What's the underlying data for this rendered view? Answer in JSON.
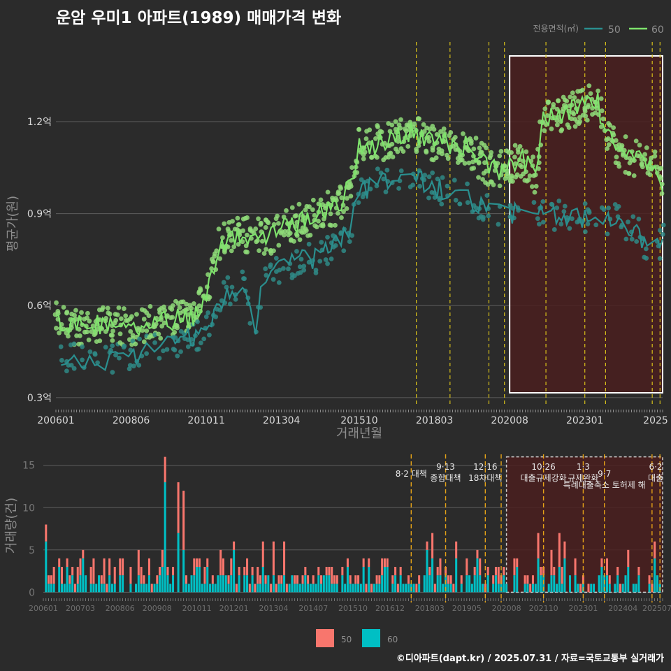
{
  "title": "운암 우미1 아파트(1989) 매매가격 변화",
  "credit": "©디아파트(dapt.kr) / 2025.07.31 / 자료=국토교통부 실거래가",
  "colors": {
    "bg": "#2b2b2b",
    "grid": "#5c5c5c",
    "axis_text": "#d8d8d8",
    "axis_title": "#8e8e8e",
    "s50_line": "#2a8f8f",
    "s60_line": "#7ee36c",
    "s50_point": "#2f8a86",
    "s60_point": "#8fdc79",
    "bar50": "#f8766d",
    "bar60": "#00bfc4",
    "event_line": "#d8c11a",
    "event_line_bottom": "#e6a317",
    "highlight_fill": "#4a1f1f",
    "highlight_border": "#ffffff",
    "event_text": "#e8e8e8"
  },
  "chart_data": [
    {
      "type": "line",
      "name": "price",
      "xlabel": "거래년월",
      "ylabel": "평균가(원)",
      "ylim": [
        0.27,
        1.46
      ],
      "xlim": [
        "2006-01",
        "2025-07"
      ],
      "y_ticks": [
        0.3,
        0.6,
        0.9,
        1.2
      ],
      "y_tick_labels": [
        "0.3억",
        "0.6억",
        "0.9억",
        "1.2억"
      ],
      "x_tick_labels": [
        "200601",
        "200806",
        "201011",
        "201304",
        "201510",
        "201803",
        "202008",
        "202301",
        "2025"
      ],
      "x_tick_dates": [
        "2006-01",
        "2008-06",
        "2010-11",
        "2013-04",
        "2015-10",
        "2018-03",
        "2020-08",
        "2023-01",
        "2025-07"
      ],
      "grid": true,
      "legend": {
        "title": "전용면적(㎡)",
        "position": "top-right",
        "entries": [
          "50",
          "60"
        ]
      },
      "series": [
        {
          "name": "60",
          "anchors": [
            [
              "2006-01",
              0.55
            ],
            [
              "2006-06",
              0.53
            ],
            [
              "2007-06",
              0.54
            ],
            [
              "2008-06",
              0.53
            ],
            [
              "2009-06",
              0.55
            ],
            [
              "2010-06",
              0.56
            ],
            [
              "2010-11",
              0.65
            ],
            [
              "2011-04",
              0.8
            ],
            [
              "2011-10",
              0.83
            ],
            [
              "2012-06",
              0.83
            ],
            [
              "2013-01",
              0.83
            ],
            [
              "2013-06",
              0.86
            ],
            [
              "2014-01",
              0.88
            ],
            [
              "2014-06",
              0.9
            ],
            [
              "2015-01",
              0.92
            ],
            [
              "2015-06",
              0.98
            ],
            [
              "2015-10",
              1.12
            ],
            [
              "2016-06",
              1.13
            ],
            [
              "2017-01",
              1.15
            ],
            [
              "2017-06",
              1.17
            ],
            [
              "2018-03",
              1.13
            ],
            [
              "2018-09",
              1.13
            ],
            [
              "2019-03",
              1.12
            ],
            [
              "2019-09",
              1.07
            ],
            [
              "2020-03",
              1.04
            ],
            [
              "2020-08",
              1.06
            ],
            [
              "2021-01",
              1.08
            ],
            [
              "2021-06",
              1.02
            ],
            [
              "2021-09",
              1.2
            ],
            [
              "2022-03",
              1.22
            ],
            [
              "2022-09",
              1.24
            ],
            [
              "2023-01",
              1.25
            ],
            [
              "2023-06",
              1.27
            ],
            [
              "2023-09",
              1.15
            ],
            [
              "2024-03",
              1.1
            ],
            [
              "2024-09",
              1.08
            ],
            [
              "2025-03",
              1.07
            ],
            [
              "2025-07",
              1.0
            ]
          ]
        },
        {
          "name": "50",
          "anchors": [
            [
              "2006-01",
              0.43
            ],
            [
              "2007-06",
              0.42
            ],
            [
              "2008-06",
              0.44
            ],
            [
              "2009-06",
              0.47
            ],
            [
              "2010-06",
              0.5
            ],
            [
              "2010-11",
              0.52
            ],
            [
              "2011-06",
              0.64
            ],
            [
              "2012-01",
              0.68
            ],
            [
              "2012-06",
              0.5
            ],
            [
              "2012-09",
              0.7
            ],
            [
              "2013-06",
              0.73
            ],
            [
              "2014-01",
              0.76
            ],
            [
              "2014-06",
              0.75
            ],
            [
              "2015-01",
              0.8
            ],
            [
              "2015-06",
              0.83
            ],
            [
              "2015-10",
              0.97
            ],
            [
              "2016-06",
              1.0
            ],
            [
              "2017-01",
              1.02
            ],
            [
              "2017-06",
              1.03
            ],
            [
              "2018-03",
              0.98
            ],
            [
              "2019-01",
              0.97
            ],
            [
              "2019-09",
              0.92
            ],
            [
              "2020-03",
              0.9
            ],
            [
              "2020-08",
              0.9
            ],
            [
              "2021-06",
              0.9
            ],
            [
              "2024-01",
              0.88
            ],
            [
              "2024-09",
              0.85
            ],
            [
              "2025-03",
              0.75
            ],
            [
              "2025-07",
              0.82
            ]
          ]
        }
      ]
    },
    {
      "type": "bar",
      "name": "volume",
      "ylabel": "거래량(건)",
      "ylim": [
        -0.8,
        16.3
      ],
      "y_ticks": [
        0,
        5,
        10,
        15
      ],
      "y_tick_labels": [
        "0",
        "5",
        "10",
        "15"
      ],
      "x_tick_labels": [
        "200601",
        "200703",
        "200806",
        "200908",
        "201011",
        "201201",
        "201304",
        "201407",
        "201510",
        "201612",
        "201803",
        "201905",
        "202008",
        "202110",
        "202301",
        "202404",
        "202507"
      ],
      "x_tick_dates": [
        "2006-01",
        "2007-03",
        "2008-06",
        "2009-08",
        "2010-11",
        "2012-01",
        "2013-04",
        "2014-07",
        "2015-10",
        "2016-12",
        "2018-03",
        "2019-05",
        "2020-08",
        "2021-10",
        "2023-01",
        "2024-04",
        "2025-07"
      ],
      "legend_position": "bottom",
      "series": [
        {
          "name": "50",
          "role": "stacked-top"
        },
        {
          "name": "60",
          "role": "stacked-bottom"
        }
      ],
      "notable_peaks": [
        {
          "month": "2009-11",
          "value": 16
        },
        {
          "month": "2010-04",
          "value": 13
        },
        {
          "month": "2010-06",
          "value": 12
        },
        {
          "month": "2006-02",
          "value": 8
        }
      ]
    }
  ],
  "events": [
    {
      "date": "2017-08",
      "label": "8·2 대책",
      "row": 1
    },
    {
      "date": "2018-09",
      "label": "9·13\n종합대책",
      "row": 0
    },
    {
      "date": "2019-12",
      "label": "12·16\n18차대책",
      "row": 0
    },
    {
      "date": "2020-06",
      "label": "",
      "row": 0
    },
    {
      "date": "2021-10",
      "label": "10·26\n대출규제강화",
      "row": 0
    },
    {
      "date": "2023-01",
      "label": "1·3\n규제완화",
      "row": 0
    },
    {
      "date": "2023-09",
      "label": "9·7\n특례대출축소 토허제 해",
      "row": 1
    },
    {
      "date": "2025-03",
      "label": "",
      "row": 0
    },
    {
      "date": "2025-06",
      "label": "6·2\n대출",
      "row": 0
    }
  ],
  "highlight": {
    "start": "2020-08",
    "end": "2025-07"
  }
}
